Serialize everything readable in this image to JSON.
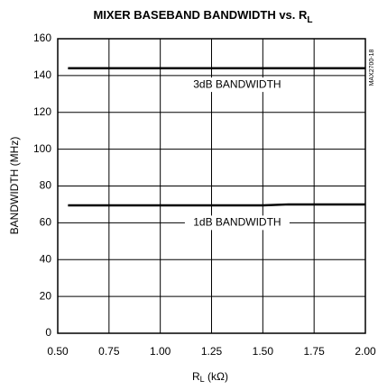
{
  "chart_data": {
    "type": "line",
    "title": {
      "main": "MIXER BASEBAND BANDWIDTH vs. R",
      "subscript": "L"
    },
    "x_label": {
      "main": "R",
      "subscript": "L",
      "unit": " (kΩ)"
    },
    "y_label": "BANDWIDTH (MHz)",
    "side_note": "MAX2700-18",
    "x": [
      0.55,
      0.75,
      1.0,
      1.25,
      1.5,
      1.625,
      1.75,
      2.0
    ],
    "series": [
      {
        "name": "3dB BANDWIDTH",
        "color": "#000000",
        "values": [
          144,
          144,
          144,
          144,
          144,
          144,
          144,
          144
        ],
        "label_at": [
          1.375,
          135
        ]
      },
      {
        "name": "1dB BANDWIDTH",
        "color": "#000000",
        "values": [
          69.5,
          69.5,
          69.5,
          69.5,
          69.5,
          70,
          70,
          70
        ],
        "label_at": [
          1.375,
          60
        ]
      }
    ],
    "xlim": [
      0.5,
      2.0
    ],
    "xticks": [
      {
        "value": 0.5,
        "label": "0.50"
      },
      {
        "value": 0.75,
        "label": "0.75"
      },
      {
        "value": 1.0,
        "label": "1.00"
      },
      {
        "value": 1.25,
        "label": "1.25"
      },
      {
        "value": 1.5,
        "label": "1.50"
      },
      {
        "value": 1.75,
        "label": "1.75"
      },
      {
        "value": 2.0,
        "label": "2.00"
      }
    ],
    "ylim": [
      0,
      160
    ],
    "yticks": [
      0,
      20,
      40,
      60,
      80,
      100,
      120,
      140,
      160
    ],
    "grid": true
  }
}
